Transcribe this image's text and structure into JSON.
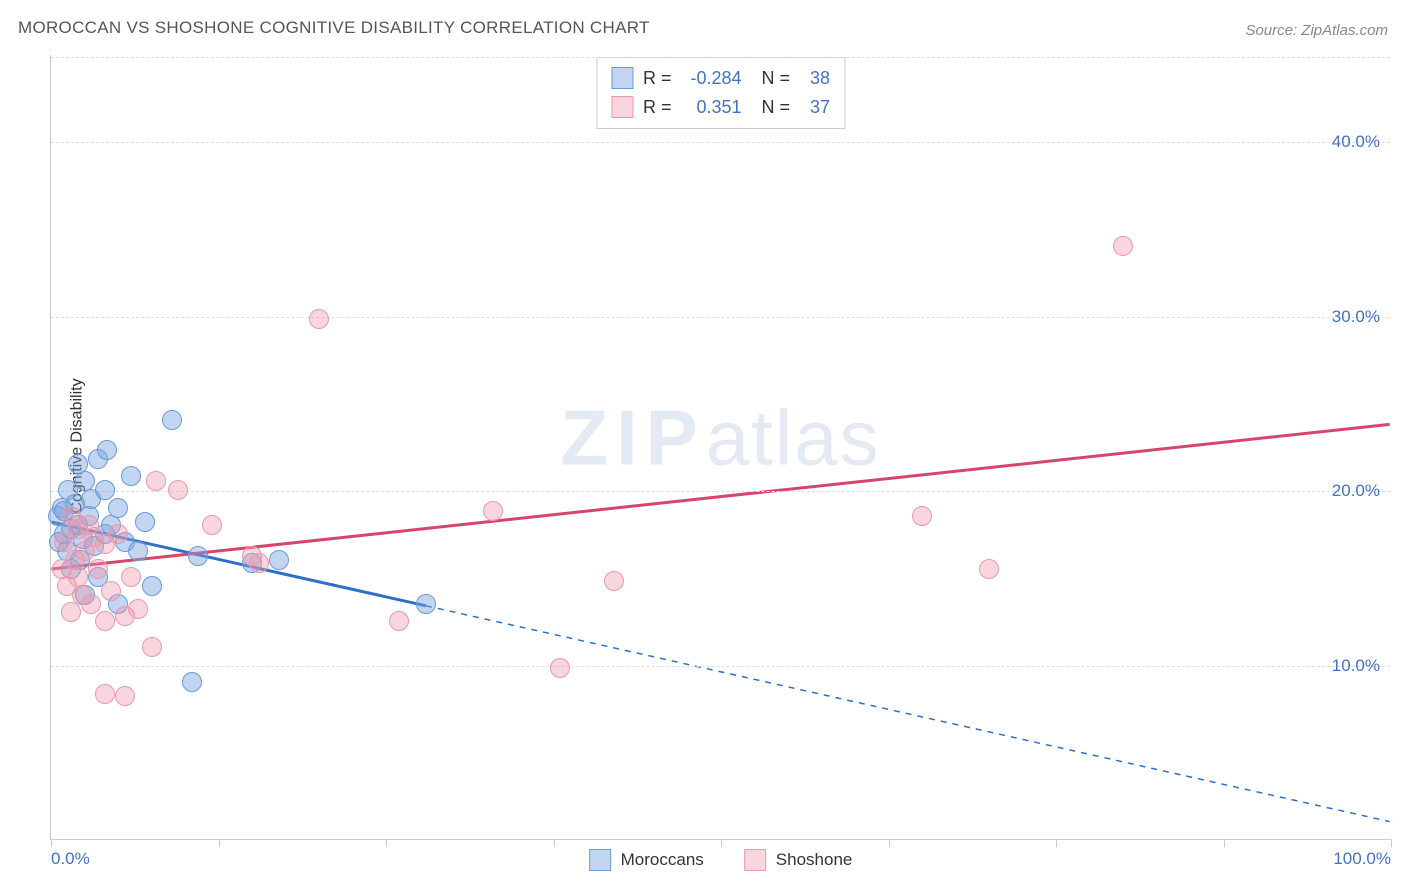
{
  "title": "MOROCCAN VS SHOSHONE COGNITIVE DISABILITY CORRELATION CHART",
  "source": "Source: ZipAtlas.com",
  "ylabel": "Cognitive Disability",
  "watermark_a": "ZIP",
  "watermark_b": "atlas",
  "chart": {
    "type": "scatter",
    "xlim": [
      0,
      100
    ],
    "ylim": [
      0,
      45
    ],
    "xticks": [
      0,
      12.5,
      25,
      37.5,
      50,
      62.5,
      75,
      87.5,
      100
    ],
    "xtick_labels": {
      "0": "0.0%",
      "100": "100.0%"
    },
    "yticks": [
      10,
      20,
      30,
      40
    ],
    "ytick_labels": [
      "10.0%",
      "20.0%",
      "30.0%",
      "40.0%"
    ],
    "background_color": "#ffffff",
    "grid_color": "#dddddd",
    "axis_color": "#cccccc",
    "label_color": "#4472c4",
    "point_radius": 10,
    "series": [
      {
        "name": "Moroccans",
        "fill": "rgba(120,165,225,0.45)",
        "stroke": "#6b9bd8",
        "line_color": "#2e6fc9",
        "r_label": "R =",
        "r_value": "-0.284",
        "n_label": "N =",
        "n_value": "38",
        "trend": {
          "x1": 0,
          "y1": 18.2,
          "x2": 28,
          "y2": 13.4,
          "solid_until_x": 28,
          "x_end": 100,
          "y_end": 1.0
        },
        "points": [
          [
            0.5,
            18.5
          ],
          [
            0.6,
            17.0
          ],
          [
            0.8,
            19.0
          ],
          [
            1.0,
            17.5
          ],
          [
            1.0,
            18.8
          ],
          [
            1.2,
            16.5
          ],
          [
            1.3,
            20.0
          ],
          [
            1.5,
            17.8
          ],
          [
            1.5,
            15.5
          ],
          [
            1.8,
            19.2
          ],
          [
            2.0,
            18.0
          ],
          [
            2.0,
            21.5
          ],
          [
            2.2,
            16.0
          ],
          [
            2.4,
            17.2
          ],
          [
            2.5,
            20.5
          ],
          [
            2.5,
            14.0
          ],
          [
            2.8,
            18.5
          ],
          [
            3.0,
            19.5
          ],
          [
            3.2,
            16.8
          ],
          [
            3.5,
            21.8
          ],
          [
            3.5,
            15.0
          ],
          [
            4.0,
            17.5
          ],
          [
            4.0,
            20.0
          ],
          [
            4.2,
            22.3
          ],
          [
            4.5,
            18.0
          ],
          [
            5.0,
            19.0
          ],
          [
            5.0,
            13.5
          ],
          [
            5.5,
            17.0
          ],
          [
            6.0,
            20.8
          ],
          [
            6.5,
            16.5
          ],
          [
            7.0,
            18.2
          ],
          [
            7.5,
            14.5
          ],
          [
            9.0,
            24.0
          ],
          [
            10.5,
            9.0
          ],
          [
            11.0,
            16.2
          ],
          [
            15.0,
            15.8
          ],
          [
            17.0,
            16.0
          ],
          [
            28.0,
            13.5
          ]
        ]
      },
      {
        "name": "Shoshone",
        "fill": "rgba(240,150,170,0.40)",
        "stroke": "#e89ab0",
        "line_color": "#d8456b",
        "r_label": "R =",
        "r_value": "0.351",
        "n_label": "N =",
        "n_value": "37",
        "trend": {
          "x1": 0,
          "y1": 15.5,
          "x2": 100,
          "y2": 23.8,
          "solid_until_x": 100
        },
        "points": [
          [
            0.8,
            15.5
          ],
          [
            1.0,
            17.0
          ],
          [
            1.2,
            14.5
          ],
          [
            1.5,
            18.5
          ],
          [
            1.5,
            13.0
          ],
          [
            1.8,
            16.0
          ],
          [
            2.0,
            15.0
          ],
          [
            2.0,
            17.8
          ],
          [
            2.3,
            14.0
          ],
          [
            2.5,
            16.5
          ],
          [
            2.8,
            18.0
          ],
          [
            3.0,
            13.5
          ],
          [
            3.2,
            17.3
          ],
          [
            3.5,
            15.5
          ],
          [
            4.0,
            12.5
          ],
          [
            4.0,
            16.9
          ],
          [
            4.5,
            14.2
          ],
          [
            5.0,
            17.5
          ],
          [
            5.5,
            12.8
          ],
          [
            5.5,
            8.2
          ],
          [
            6.0,
            15.0
          ],
          [
            6.5,
            13.2
          ],
          [
            7.5,
            11.0
          ],
          [
            7.8,
            20.5
          ],
          [
            9.5,
            20.0
          ],
          [
            12.0,
            18.0
          ],
          [
            15.0,
            16.2
          ],
          [
            15.5,
            15.8
          ],
          [
            20.0,
            29.8
          ],
          [
            26.0,
            12.5
          ],
          [
            33.0,
            18.8
          ],
          [
            38.0,
            9.8
          ],
          [
            42.0,
            14.8
          ],
          [
            65.0,
            18.5
          ],
          [
            70.0,
            15.5
          ],
          [
            80.0,
            34.0
          ],
          [
            4.0,
            8.3
          ]
        ]
      }
    ],
    "bottom_legend": [
      {
        "label": "Moroccans",
        "fill": "rgba(120,165,225,0.45)",
        "stroke": "#6b9bd8"
      },
      {
        "label": "Shoshone",
        "fill": "rgba(240,150,170,0.40)",
        "stroke": "#e89ab0"
      }
    ]
  }
}
